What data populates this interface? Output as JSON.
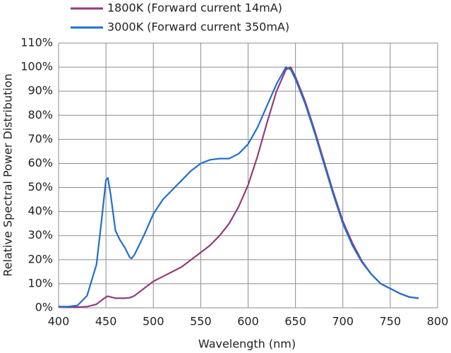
{
  "chart_data": {
    "type": "line",
    "xlabel": "Wavelength (nm)",
    "ylabel": "Relative Spectral Power Distribution",
    "xlim": [
      400,
      800
    ],
    "xticks": [
      400,
      450,
      500,
      550,
      600,
      650,
      700,
      750,
      800
    ],
    "ylim": [
      0,
      110
    ],
    "yticks": [
      {
        "value": 0,
        "label": "0%"
      },
      {
        "value": 10,
        "label": "10%"
      },
      {
        "value": 20,
        "label": "20%"
      },
      {
        "value": 30,
        "label": "30%"
      },
      {
        "value": 40,
        "label": "40%"
      },
      {
        "value": 50,
        "label": "50%"
      },
      {
        "value": 60,
        "label": "60%"
      },
      {
        "value": 70,
        "label": "70%"
      },
      {
        "value": 80,
        "label": "80%"
      },
      {
        "value": 90,
        "label": "90%"
      },
      {
        "value": 100,
        "label": "100%"
      },
      {
        "value": 110,
        "label": "110%"
      }
    ],
    "grid": true,
    "x": [
      400,
      410,
      420,
      430,
      440,
      445,
      450,
      452,
      455,
      460,
      465,
      470,
      475,
      477,
      480,
      490,
      500,
      510,
      520,
      530,
      540,
      550,
      560,
      570,
      580,
      590,
      600,
      610,
      620,
      630,
      640,
      645,
      650,
      660,
      670,
      680,
      690,
      700,
      710,
      720,
      730,
      740,
      750,
      760,
      770,
      780
    ],
    "series": [
      {
        "name": "1800K (Forward current 14mA)",
        "color": "#943b7a",
        "values": [
          0.5,
          0.3,
          0.3,
          0.5,
          1.5,
          3,
          4.5,
          4.8,
          4.5,
          4,
          4,
          4,
          4.2,
          4.5,
          5,
          8,
          11,
          13,
          15,
          17,
          20,
          23,
          26,
          30,
          35,
          42,
          51,
          63,
          77,
          90,
          99,
          100,
          96,
          86,
          74,
          61,
          48,
          36,
          27,
          19.5,
          14,
          10,
          8,
          6,
          4.5,
          4
        ]
      },
      {
        "name": "3000K (Forward current 350mA)",
        "color": "#1f6fcf",
        "values": [
          0.5,
          0.5,
          1,
          5,
          18,
          35,
          53,
          54,
          47,
          32,
          28,
          25,
          21,
          20.5,
          22,
          30,
          39,
          45,
          49,
          53,
          57,
          60,
          61.5,
          62,
          62,
          64,
          68,
          75,
          84,
          93,
          100,
          99,
          95,
          85,
          73,
          60,
          47,
          35,
          26,
          19,
          14,
          10,
          8,
          6,
          4.5,
          4
        ]
      }
    ]
  }
}
